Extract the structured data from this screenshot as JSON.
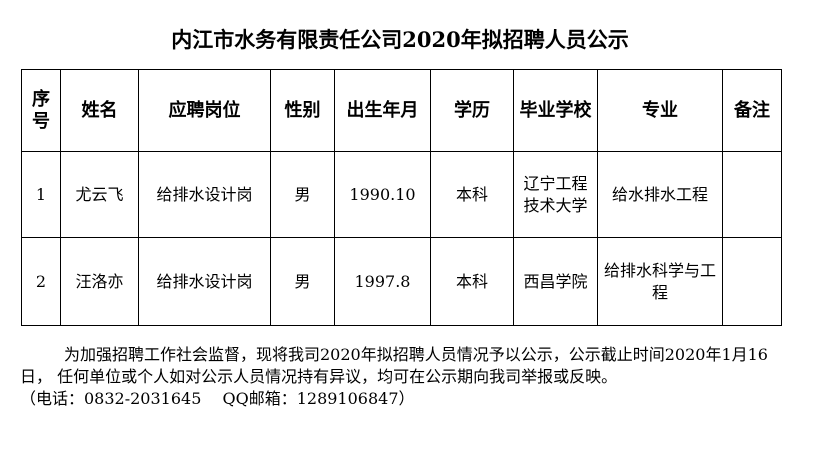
{
  "title": "内江市水务有限责任公司2020年拟招聘人员公示",
  "table": {
    "headers": [
      "序号",
      "姓名",
      "应聘岗位",
      "性别",
      "出生年月",
      "学历",
      "毕业学校",
      "专业",
      "备注"
    ],
    "rows": [
      [
        "1",
        "尤云飞",
        "给排水设计岗",
        "男",
        "1990.10",
        "本科",
        "辽宁工程技术大学",
        "给水排水工程",
        ""
      ],
      [
        "2",
        "汪洛亦",
        "给排水设计岗",
        "男",
        "1997.8",
        "本科",
        "西昌学院",
        "给排水科学与工程",
        ""
      ]
    ]
  },
  "notice": {
    "paragraph": "为加强招聘工作社会监督，现将我司2020年拟招聘人员情况予以公示，公示截止时间2020年1月16日， 任何单位或个人如对公示人员情况持有异议，均可在公示期向我司举报或反映。",
    "contact": "（电话：0832-2031645　 QQ邮箱：1289106847）"
  }
}
